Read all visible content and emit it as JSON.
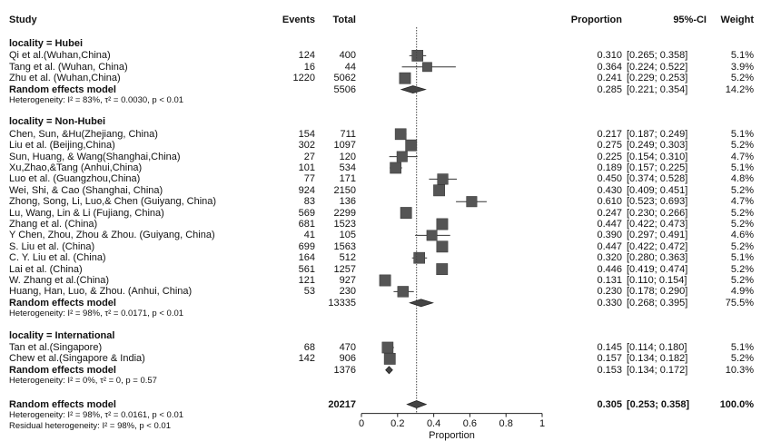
{
  "header": {
    "study": "Study",
    "events": "Events",
    "total": "Total",
    "proportion": "Proportion",
    "ci": "95%-CI",
    "weight": "Weight"
  },
  "groups": [
    {
      "label": "locality = Hubei",
      "studies": [
        {
          "name": "Qi et al.(Wuhan,China)",
          "events": "124",
          "total": "400",
          "prop": 0.31,
          "lo": 0.265,
          "hi": 0.358,
          "prop_text": "0.310",
          "ci_text": "[0.265; 0.358]",
          "weight": "5.1%"
        },
        {
          "name": "Tang et al. (Wuhan, China)",
          "events": "16",
          "total": "44",
          "prop": 0.364,
          "lo": 0.224,
          "hi": 0.522,
          "prop_text": "0.364",
          "ci_text": "[0.224; 0.522]",
          "weight": "3.9%"
        },
        {
          "name": "Zhu et al. (Wuhan,China)",
          "events": "1220",
          "total": "5062",
          "prop": 0.241,
          "lo": 0.229,
          "hi": 0.253,
          "prop_text": "0.241",
          "ci_text": "[0.229; 0.253]",
          "weight": "5.2%"
        }
      ],
      "summary": {
        "label": "Random effects model",
        "total": "5506",
        "prop": 0.285,
        "lo": 0.221,
        "hi": 0.354,
        "prop_text": "0.285",
        "ci_text": "[0.221; 0.354]",
        "weight": "14.2%"
      },
      "heterogeneity": "Heterogeneity: I² = 83%, τ² = 0.0030, p < 0.01"
    },
    {
      "label": "locality = Non-Hubei",
      "studies": [
        {
          "name": "Chen, Sun, &Hu(Zhejiang, China)",
          "events": "154",
          "total": "711",
          "prop": 0.217,
          "lo": 0.187,
          "hi": 0.249,
          "prop_text": "0.217",
          "ci_text": "[0.187; 0.249]",
          "weight": "5.1%"
        },
        {
          "name": "Liu et al. (Beijing,China)",
          "events": "302",
          "total": "1097",
          "prop": 0.275,
          "lo": 0.249,
          "hi": 0.303,
          "prop_text": "0.275",
          "ci_text": "[0.249; 0.303]",
          "weight": "5.2%"
        },
        {
          "name": "Sun, Huang, & Wang(Shanghai,China)",
          "events": "27",
          "total": "120",
          "prop": 0.225,
          "lo": 0.154,
          "hi": 0.31,
          "prop_text": "0.225",
          "ci_text": "[0.154; 0.310]",
          "weight": "4.7%"
        },
        {
          "name": "Xu,Zhao,&Tang (Anhui,China)",
          "events": "101",
          "total": "534",
          "prop": 0.189,
          "lo": 0.157,
          "hi": 0.225,
          "prop_text": "0.189",
          "ci_text": "[0.157; 0.225]",
          "weight": "5.1%"
        },
        {
          "name": "Luo et al. (Guangzhou,China)",
          "events": "77",
          "total": "171",
          "prop": 0.45,
          "lo": 0.374,
          "hi": 0.528,
          "prop_text": "0.450",
          "ci_text": "[0.374; 0.528]",
          "weight": "4.8%"
        },
        {
          "name": "Wei, Shi, & Cao (Shanghai, China)",
          "events": "924",
          "total": "2150",
          "prop": 0.43,
          "lo": 0.409,
          "hi": 0.451,
          "prop_text": "0.430",
          "ci_text": "[0.409; 0.451]",
          "weight": "5.2%"
        },
        {
          "name": "Zhong, Song, Li, Luo,& Chen (Guiyang, China)",
          "events": "83",
          "total": "136",
          "prop": 0.61,
          "lo": 0.523,
          "hi": 0.693,
          "prop_text": "0.610",
          "ci_text": "[0.523; 0.693]",
          "weight": "4.7%"
        },
        {
          "name": "Lu, Wang, Lin & Li (Fujiang, China)",
          "events": "569",
          "total": "2299",
          "prop": 0.247,
          "lo": 0.23,
          "hi": 0.266,
          "prop_text": "0.247",
          "ci_text": "[0.230; 0.266]",
          "weight": "5.2%"
        },
        {
          "name": "Zhang et al. (China)",
          "events": "681",
          "total": "1523",
          "prop": 0.447,
          "lo": 0.422,
          "hi": 0.473,
          "prop_text": "0.447",
          "ci_text": "[0.422; 0.473]",
          "weight": "5.2%"
        },
        {
          "name": "Y Chen, Zhou, Zhou & Zhou. (Guiyang, China)",
          "events": "41",
          "total": "105",
          "prop": 0.39,
          "lo": 0.297,
          "hi": 0.491,
          "prop_text": "0.390",
          "ci_text": "[0.297; 0.491]",
          "weight": "4.6%"
        },
        {
          "name": "S. Liu et al. (China)",
          "events": "699",
          "total": "1563",
          "prop": 0.447,
          "lo": 0.422,
          "hi": 0.472,
          "prop_text": "0.447",
          "ci_text": "[0.422; 0.472]",
          "weight": "5.2%"
        },
        {
          "name": "C. Y. Liu et al. (China)",
          "events": "164",
          "total": "512",
          "prop": 0.32,
          "lo": 0.28,
          "hi": 0.363,
          "prop_text": "0.320",
          "ci_text": "[0.280; 0.363]",
          "weight": "5.1%"
        },
        {
          "name": "Lai et al. (China)",
          "events": "561",
          "total": "1257",
          "prop": 0.446,
          "lo": 0.419,
          "hi": 0.474,
          "prop_text": "0.446",
          "ci_text": "[0.419; 0.474]",
          "weight": "5.2%"
        },
        {
          "name": "W. Zhang et al.(China)",
          "events": "121",
          "total": "927",
          "prop": 0.131,
          "lo": 0.11,
          "hi": 0.154,
          "prop_text": "0.131",
          "ci_text": "[0.110; 0.154]",
          "weight": "5.2%"
        },
        {
          "name": "Huang, Han, Luo, & Zhou. (Anhui, China)",
          "events": "53",
          "total": "230",
          "prop": 0.23,
          "lo": 0.178,
          "hi": 0.29,
          "prop_text": "0.230",
          "ci_text": "[0.178; 0.290]",
          "weight": "4.9%"
        }
      ],
      "summary": {
        "label": "Random effects model",
        "total": "13335",
        "prop": 0.33,
        "lo": 0.268,
        "hi": 0.395,
        "prop_text": "0.330",
        "ci_text": "[0.268; 0.395]",
        "weight": "75.5%"
      },
      "heterogeneity": "Heterogeneity: I² = 98%, τ² = 0.0171, p < 0.01"
    },
    {
      "label": "locality = International",
      "studies": [
        {
          "name": "Tan et al.(Singapore)",
          "events": "68",
          "total": "470",
          "prop": 0.145,
          "lo": 0.114,
          "hi": 0.18,
          "prop_text": "0.145",
          "ci_text": "[0.114; 0.180]",
          "weight": "5.1%"
        },
        {
          "name": "Chew et al.(Singapore & India)",
          "events": "142",
          "total": "906",
          "prop": 0.157,
          "lo": 0.134,
          "hi": 0.182,
          "prop_text": "0.157",
          "ci_text": "[0.134; 0.182]",
          "weight": "5.2%"
        }
      ],
      "summary": {
        "label": "Random effects model",
        "total": "1376",
        "prop": 0.153,
        "lo": 0.134,
        "hi": 0.172,
        "prop_text": "0.153",
        "ci_text": "[0.134; 0.172]",
        "weight": "10.3%"
      },
      "heterogeneity": "Heterogeneity: I² = 0%, τ² = 0, p = 0.57"
    }
  ],
  "overall": {
    "label": "Random effects model",
    "total": "20217",
    "prop": 0.305,
    "lo": 0.253,
    "hi": 0.358,
    "prop_text": "0.305",
    "ci_text": "[0.253; 0.358]",
    "weight": "100.0%",
    "heterogeneity": "Heterogeneity: I² = 98%, τ² = 0.0161, p < 0.01",
    "residual": "Residual heterogeneity: I² = 98%, p < 0.01"
  },
  "chart_data": {
    "type": "forest",
    "xlabel": "Proportion",
    "xlim": [
      0,
      1
    ],
    "xticks": [
      0,
      0.2,
      0.4,
      0.6,
      0.8,
      1
    ],
    "xtick_labels": [
      "0",
      "0.2",
      "0.4",
      "0.6",
      "0.8",
      "1"
    ],
    "reference_line": 0.305
  }
}
